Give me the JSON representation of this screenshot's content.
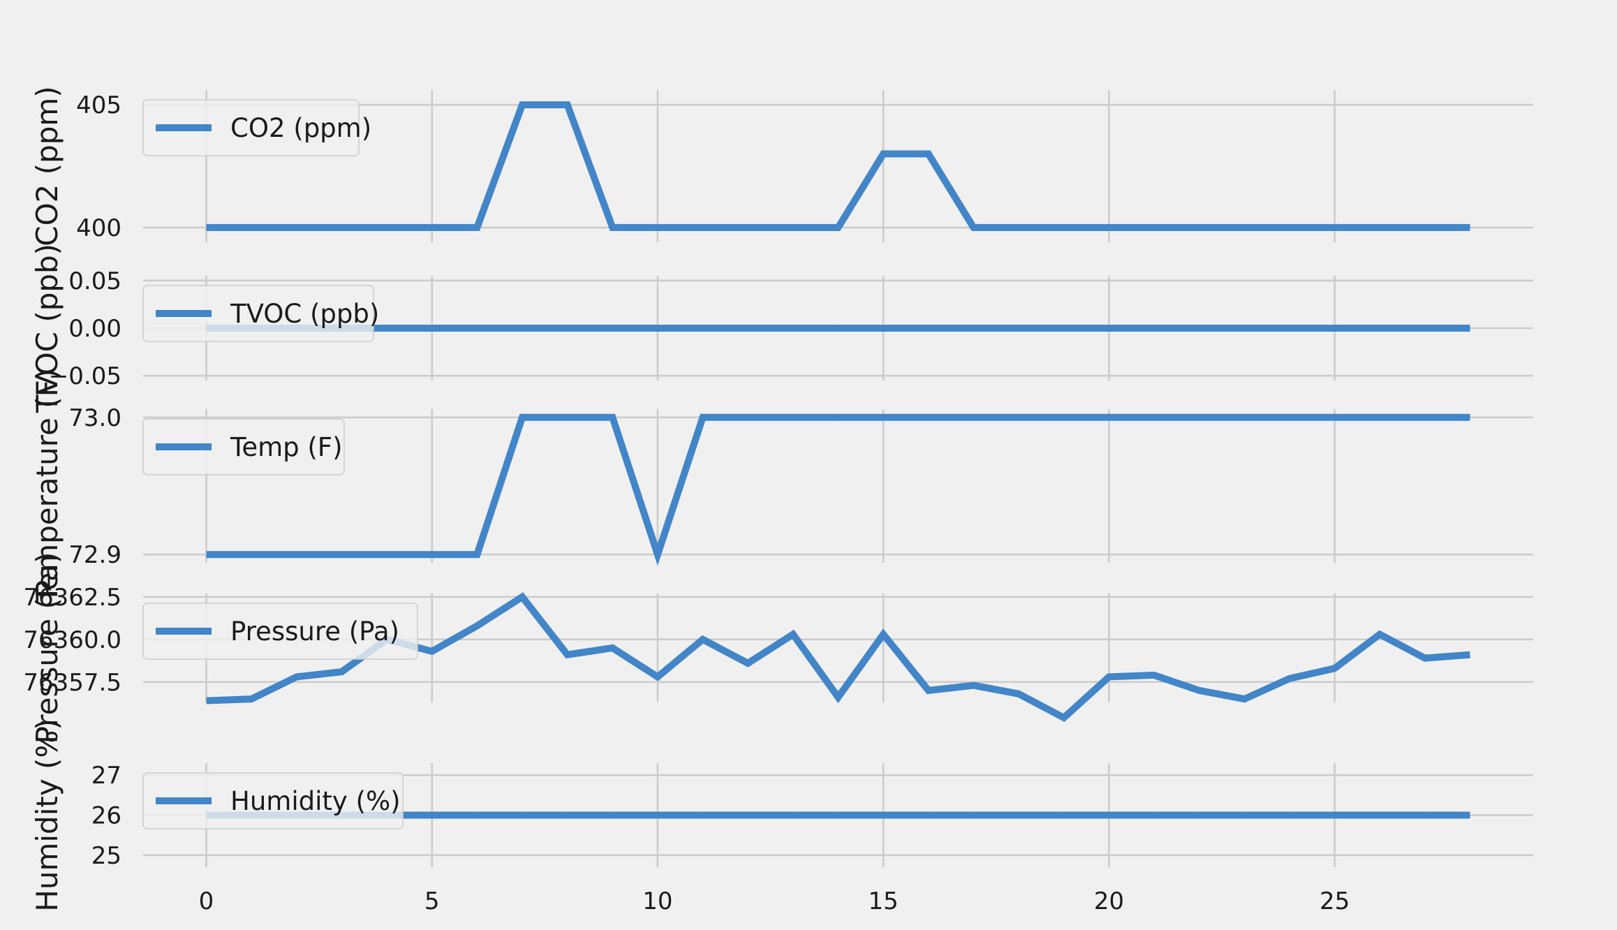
{
  "chart_data": [
    {
      "type": "line",
      "ylabel": "CO2 (ppm)",
      "yticks": [
        400,
        405
      ],
      "ylim": [
        399.4,
        405.6
      ],
      "grid": true,
      "legend": "top-left",
      "series": [
        {
          "name": "CO2 (ppm)",
          "color": "#4285c8",
          "x": [
            0,
            1,
            2,
            3,
            4,
            5,
            6,
            7,
            8,
            9,
            10,
            11,
            12,
            13,
            14,
            15,
            16,
            17,
            18,
            19,
            20,
            21,
            22,
            23,
            24,
            25,
            26,
            27,
            28
          ],
          "values": [
            400,
            400,
            400,
            400,
            400,
            400,
            400,
            405,
            405,
            400,
            400,
            400,
            400,
            400,
            400,
            403,
            403,
            400,
            400,
            400,
            400,
            400,
            400,
            400,
            400,
            400,
            400,
            400,
            400
          ]
        }
      ]
    },
    {
      "type": "line",
      "ylabel": "TVOC (ppb)",
      "yticks": [
        -0.05,
        0.0,
        0.05
      ],
      "ytick_labels": [
        "−0.05",
        "0.00",
        "0.05"
      ],
      "ylim": [
        -0.055,
        0.055
      ],
      "grid": true,
      "legend": "top-left",
      "series": [
        {
          "name": "TVOC (ppb)",
          "color": "#4285c8",
          "x": [
            0,
            1,
            2,
            3,
            4,
            5,
            6,
            7,
            8,
            9,
            10,
            11,
            12,
            13,
            14,
            15,
            16,
            17,
            18,
            19,
            20,
            21,
            22,
            23,
            24,
            25,
            26,
            27,
            28
          ],
          "values": [
            0,
            0,
            0,
            0,
            0,
            0,
            0,
            0,
            0,
            0,
            0,
            0,
            0,
            0,
            0,
            0,
            0,
            0,
            0,
            0,
            0,
            0,
            0,
            0,
            0,
            0,
            0,
            0,
            0
          ]
        }
      ]
    },
    {
      "type": "line",
      "ylabel": "Temperature (F)",
      "yticks": [
        72.9,
        73.0
      ],
      "ytick_labels": [
        "72.9",
        "73.0"
      ],
      "ylim": [
        72.894,
        73.006
      ],
      "grid": true,
      "legend": "top-left",
      "series": [
        {
          "name": "Temp (F)",
          "color": "#4285c8",
          "x": [
            0,
            1,
            2,
            3,
            4,
            5,
            6,
            7,
            8,
            9,
            10,
            11,
            12,
            13,
            14,
            15,
            16,
            17,
            18,
            19,
            20,
            21,
            22,
            23,
            24,
            25,
            26,
            27,
            28
          ],
          "values": [
            72.9,
            72.9,
            72.9,
            72.9,
            72.9,
            72.9,
            72.9,
            73.0,
            73.0,
            73.0,
            72.9,
            73.0,
            73.0,
            73.0,
            73.0,
            73.0,
            73.0,
            73.0,
            73.0,
            73.0,
            73.0,
            73.0,
            73.0,
            73.0,
            73.0,
            73.0,
            73.0,
            73.0,
            73.0
          ]
        }
      ]
    },
    {
      "type": "line",
      "ylabel": "Pressure (Pa)",
      "yticks": [
        76357.5,
        76360.0,
        76362.5
      ],
      "ytick_labels": [
        "76357.5",
        "76360.0",
        "76362.5"
      ],
      "ylim": [
        76356.3,
        76362.7
      ],
      "grid": true,
      "legend": "top-left",
      "series": [
        {
          "name": "Pressure (Pa)",
          "color": "#4285c8",
          "x": [
            0,
            1,
            2,
            3,
            4,
            5,
            6,
            7,
            8,
            9,
            10,
            11,
            12,
            13,
            14,
            15,
            16,
            17,
            18,
            19,
            20,
            21,
            22,
            23,
            24,
            25,
            26,
            27,
            28
          ],
          "values": [
            76356.4,
            76356.5,
            76357.8,
            76358.1,
            76360.0,
            76359.3,
            76360.8,
            76362.5,
            76359.1,
            76359.5,
            76357.8,
            76360.0,
            76358.6,
            76360.3,
            76356.6,
            76360.3,
            76357.0,
            76357.3,
            76356.8,
            76355.4,
            76357.8,
            76357.9,
            76357.0,
            76356.5,
            76357.7,
            76358.3,
            76360.3,
            76358.9,
            76359.1
          ]
        }
      ]
    },
    {
      "type": "line",
      "ylabel": "Humidity (%)",
      "xlabel": "",
      "yticks": [
        25,
        26,
        27
      ],
      "ylim": [
        24.7,
        27.3
      ],
      "xticks": [
        0,
        5,
        10,
        15,
        20,
        25
      ],
      "xlim": [
        -1.4,
        29.4
      ],
      "grid": true,
      "legend": "top-left",
      "series": [
        {
          "name": "Humidity (%)",
          "color": "#4285c8",
          "x": [
            0,
            1,
            2,
            3,
            4,
            5,
            6,
            7,
            8,
            9,
            10,
            11,
            12,
            13,
            14,
            15,
            16,
            17,
            18,
            19,
            20,
            21,
            22,
            23,
            24,
            25,
            26,
            27,
            28
          ],
          "values": [
            26,
            26,
            26,
            26,
            26,
            26,
            26,
            26,
            26,
            26,
            26,
            26,
            26,
            26,
            26,
            26,
            26,
            26,
            26,
            26,
            26,
            26,
            26,
            26,
            26,
            26,
            26,
            26,
            26
          ]
        }
      ]
    }
  ]
}
